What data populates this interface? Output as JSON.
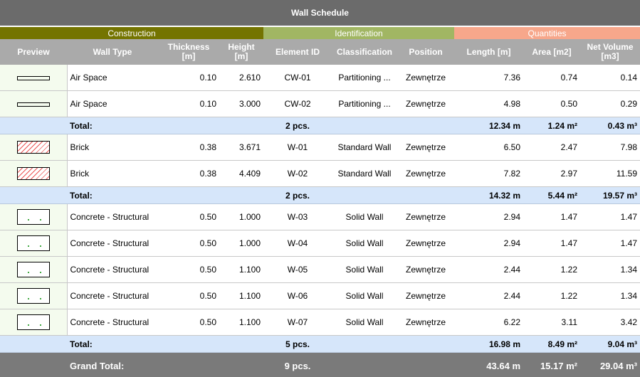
{
  "title": "Wall Schedule",
  "groups": {
    "construction": "Construction",
    "identification": "Identification",
    "quantities": "Quantities"
  },
  "colors": {
    "construction": "#747400",
    "identification": "#a1b663",
    "quantities": "#f7a78b",
    "header": "#aaaaaa",
    "total_row": "#d6e6fa"
  },
  "columns": [
    "Preview",
    "Wall Type",
    "Thickness [m]",
    "Height [m]",
    "Element ID",
    "Classification",
    "Position",
    "Length [m]",
    "Area [m2]",
    "Net Volume [m3]"
  ],
  "sections": [
    {
      "preview": "air-space-preview",
      "rows": [
        {
          "type": "Air Space",
          "thickness": "0.10",
          "height": "2.610",
          "id": "CW-01",
          "classification": "Partitioning ...",
          "position": "Zewnętrze",
          "length": "7.36",
          "area": "0.74",
          "volume": "0.14"
        },
        {
          "type": "Air Space",
          "thickness": "0.10",
          "height": "3.000",
          "id": "CW-02",
          "classification": "Partitioning ...",
          "position": "Zewnętrze",
          "length": "4.98",
          "area": "0.50",
          "volume": "0.29"
        }
      ],
      "total": {
        "label": "Total:",
        "count": "2 pcs.",
        "length": "12.34 m",
        "area": "1.24 m²",
        "volume": "0.43 m³"
      }
    },
    {
      "preview": "brick-preview",
      "rows": [
        {
          "type": "Brick",
          "thickness": "0.38",
          "height": "3.671",
          "id": "W-01",
          "classification": "Standard Wall",
          "position": "Zewnętrze",
          "length": "6.50",
          "area": "2.47",
          "volume": "7.98"
        },
        {
          "type": "Brick",
          "thickness": "0.38",
          "height": "4.409",
          "id": "W-02",
          "classification": "Standard Wall",
          "position": "Zewnętrze",
          "length": "7.82",
          "area": "2.97",
          "volume": "11.59"
        }
      ],
      "total": {
        "label": "Total:",
        "count": "2 pcs.",
        "length": "14.32 m",
        "area": "5.44 m²",
        "volume": "19.57 m³"
      }
    },
    {
      "preview": "concrete-preview",
      "rows": [
        {
          "type": "Concrete - Structural",
          "thickness": "0.50",
          "height": "1.000",
          "id": "W-03",
          "classification": "Solid Wall",
          "position": "Zewnętrze",
          "length": "2.94",
          "area": "1.47",
          "volume": "1.47"
        },
        {
          "type": "Concrete - Structural",
          "thickness": "0.50",
          "height": "1.000",
          "id": "W-04",
          "classification": "Solid Wall",
          "position": "Zewnętrze",
          "length": "2.94",
          "area": "1.47",
          "volume": "1.47"
        },
        {
          "type": "Concrete - Structural",
          "thickness": "0.50",
          "height": "1.100",
          "id": "W-05",
          "classification": "Solid Wall",
          "position": "Zewnętrze",
          "length": "2.44",
          "area": "1.22",
          "volume": "1.34"
        },
        {
          "type": "Concrete - Structural",
          "thickness": "0.50",
          "height": "1.100",
          "id": "W-06",
          "classification": "Solid Wall",
          "position": "Zewnętrze",
          "length": "2.44",
          "area": "1.22",
          "volume": "1.34"
        },
        {
          "type": "Concrete - Structural",
          "thickness": "0.50",
          "height": "1.100",
          "id": "W-07",
          "classification": "Solid Wall",
          "position": "Zewnętrze",
          "length": "6.22",
          "area": "3.11",
          "volume": "3.42"
        }
      ],
      "total": {
        "label": "Total:",
        "count": "5 pcs.",
        "length": "16.98 m",
        "area": "8.49 m²",
        "volume": "9.04 m³"
      }
    }
  ],
  "grand_total": {
    "label": "Grand Total:",
    "count": "9 pcs.",
    "length": "43.64 m",
    "area": "15.17 m²",
    "volume": "29.04 m³"
  }
}
